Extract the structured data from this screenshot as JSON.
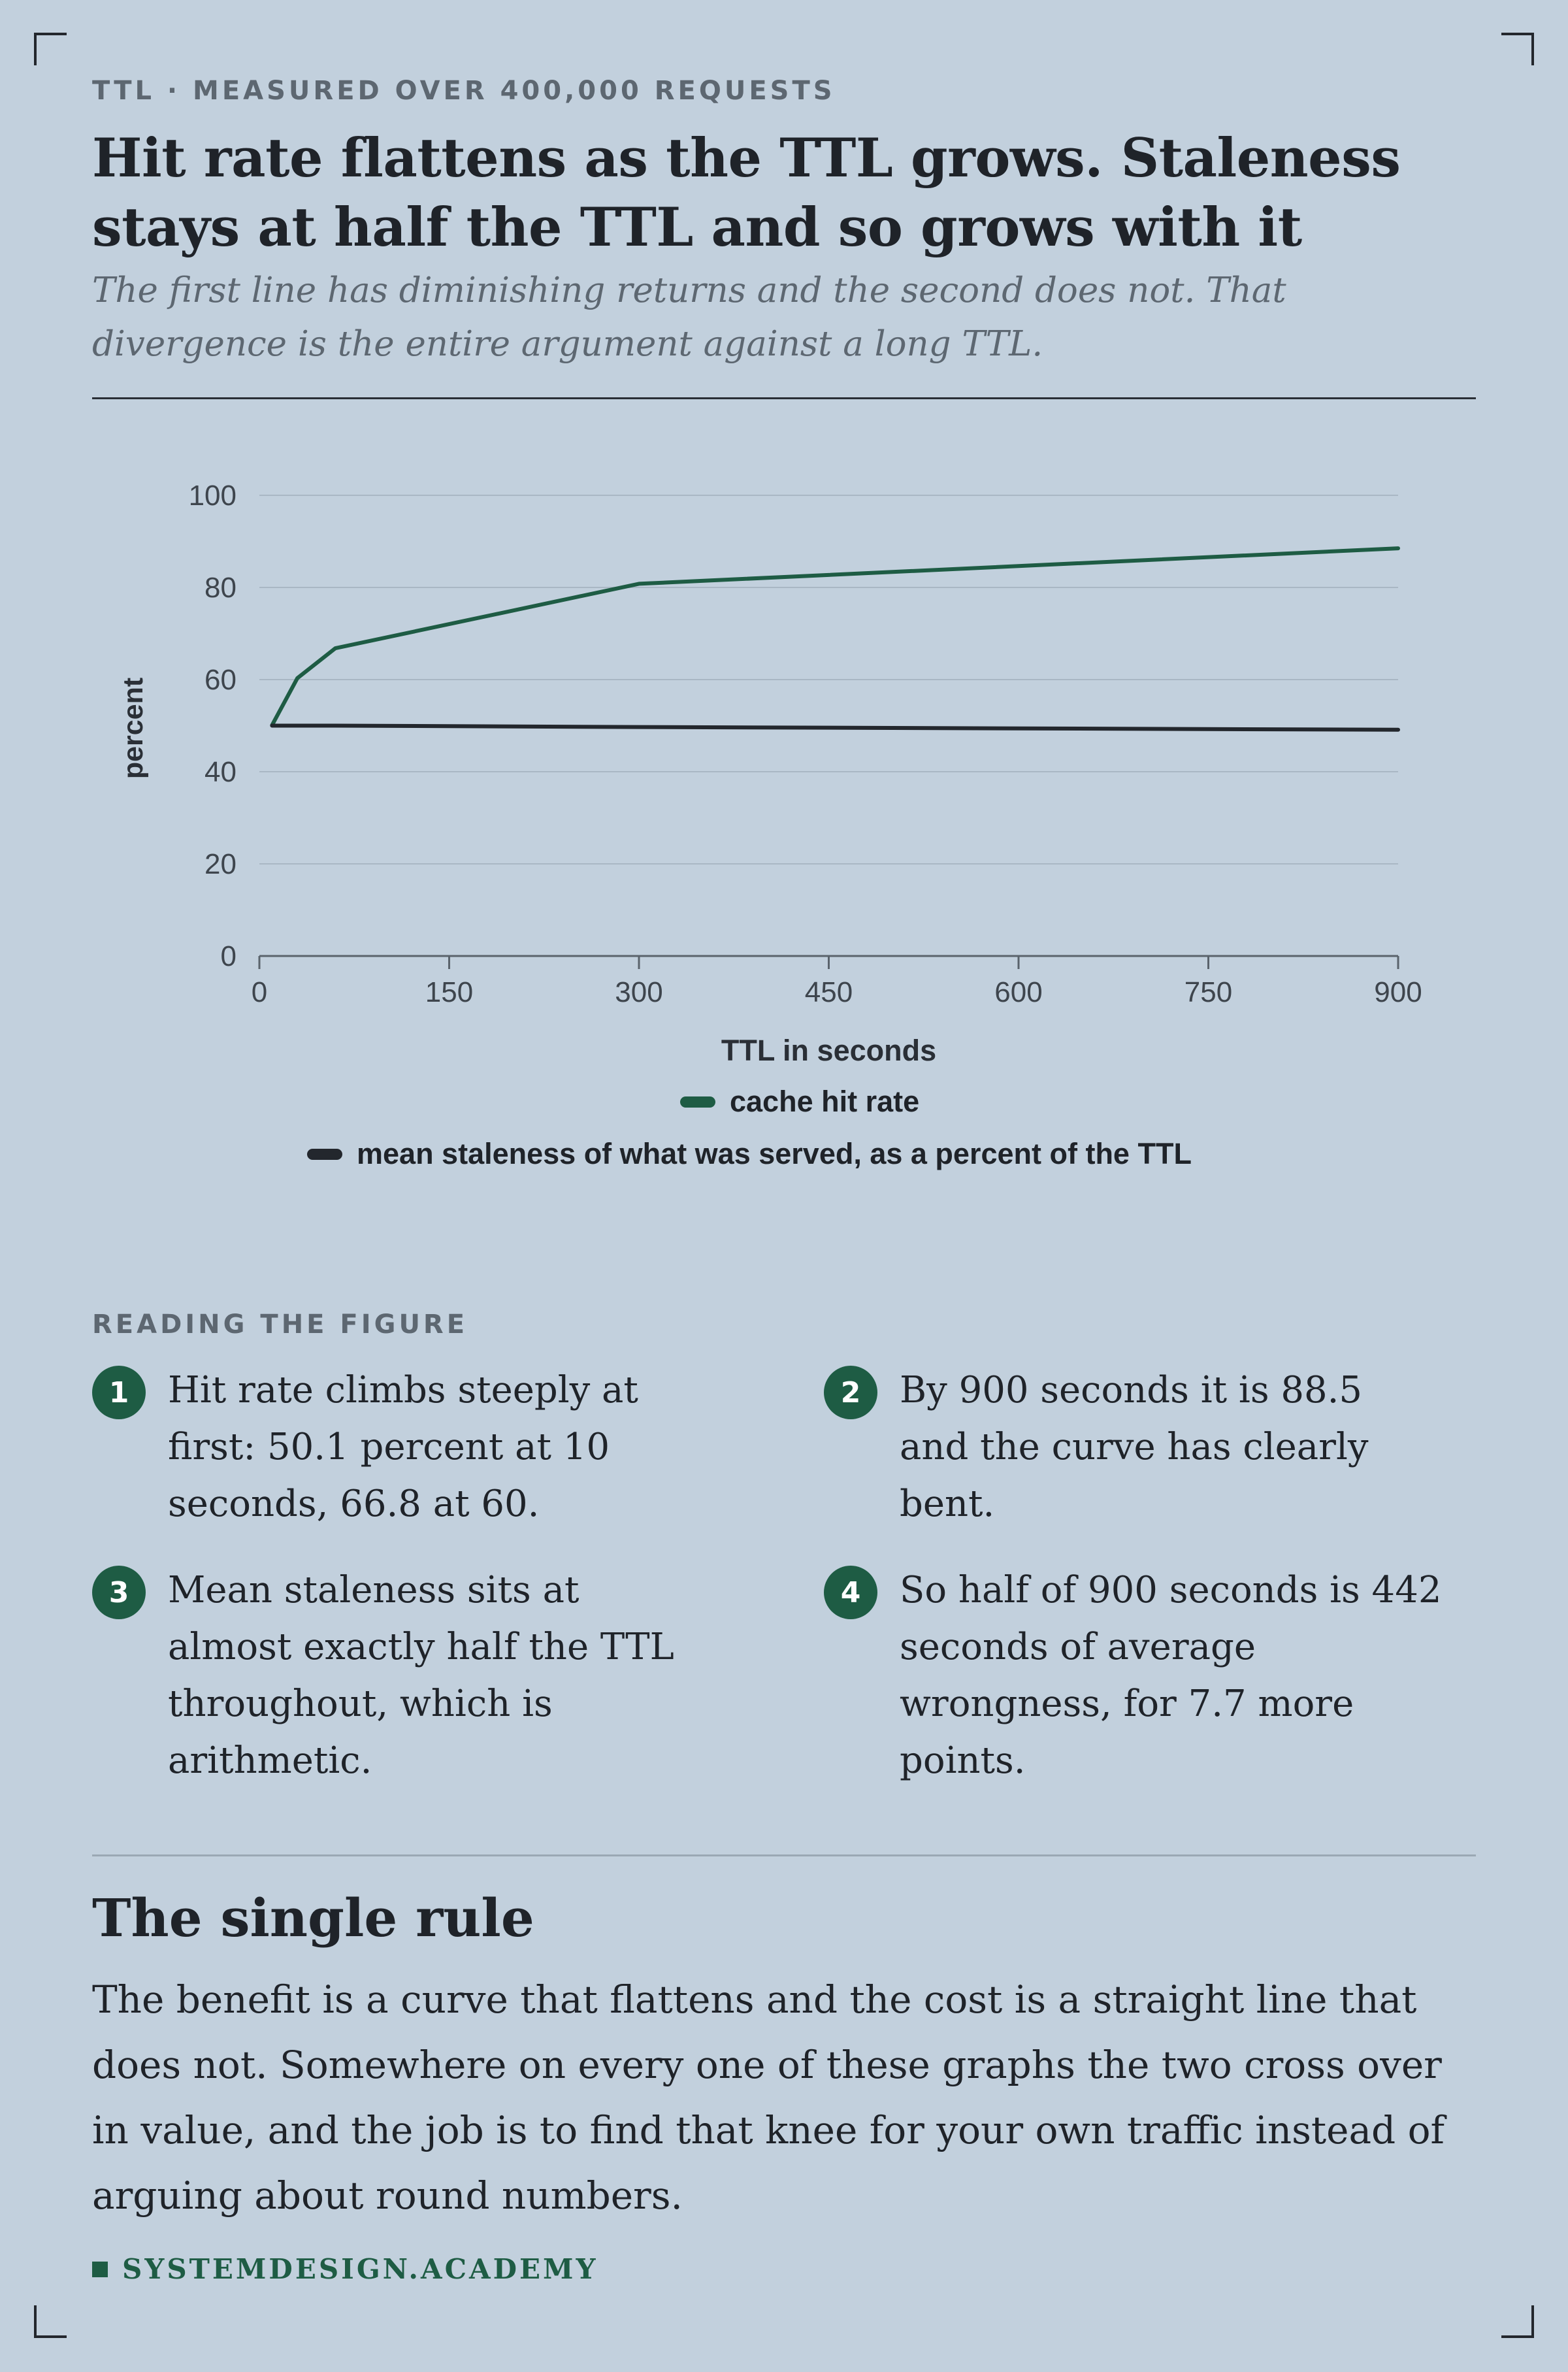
{
  "eyebrow": "TTL · MEASURED OVER 400,000 REQUESTS",
  "title": "Hit rate flattens as the TTL grows. Staleness stays at half the TTL and so grows with it",
  "subtitle": "The first line has diminishing returns and the second does not. That divergence is the entire argument against a long TTL.",
  "colors": {
    "background": "#c2d0dd",
    "hit_rate": "#1e5c44",
    "staleness": "#23272d",
    "grid": "#a9b7c4",
    "muted_text": "#5d6771"
  },
  "chart_data": {
    "type": "line",
    "xlabel": "TTL in seconds",
    "ylabel": "percent",
    "xlim": [
      0,
      900
    ],
    "ylim": [
      0,
      100
    ],
    "xticks": [
      0,
      150,
      300,
      450,
      600,
      750,
      900
    ],
    "yticks": [
      0,
      20,
      40,
      60,
      80,
      100
    ],
    "grid": "horizontal",
    "legend_position": "bottom",
    "series": [
      {
        "name": "cache hit rate",
        "color": "#1e5c44",
        "points": [
          [
            10,
            50.1
          ],
          [
            30,
            60.3
          ],
          [
            60,
            66.8
          ],
          [
            300,
            80.8
          ],
          [
            900,
            88.5
          ]
        ]
      },
      {
        "name": "mean staleness of what was served, as a percent of the TTL",
        "color": "#23272d",
        "points": [
          [
            10,
            50.0
          ],
          [
            30,
            50.0
          ],
          [
            60,
            50.0
          ],
          [
            300,
            49.7
          ],
          [
            900,
            49.1
          ]
        ]
      }
    ]
  },
  "notes_heading": "READING THE FIGURE",
  "notes": [
    {
      "num": "1",
      "text": "Hit rate climbs steeply at first: 50.1 percent at 10 seconds, 66.8 at 60."
    },
    {
      "num": "2",
      "text": "By 900 seconds it is 88.5 and the curve has clearly bent."
    },
    {
      "num": "3",
      "text": "Mean staleness sits at almost exactly half the TTL throughout, which is arithmetic."
    },
    {
      "num": "4",
      "text": "So half of 900 seconds is 442 seconds of average wrongness, for 7.7 more points."
    }
  ],
  "conclusion": {
    "heading": "The single rule",
    "body": "The benefit is a curve that flattens and the cost is a straight line that does not. Somewhere on every one of these graphs the two cross over in value, and the job is to find that knee for your own traffic instead of arguing about round numbers."
  },
  "brand": "SYSTEMDESIGN.ACADEMY"
}
